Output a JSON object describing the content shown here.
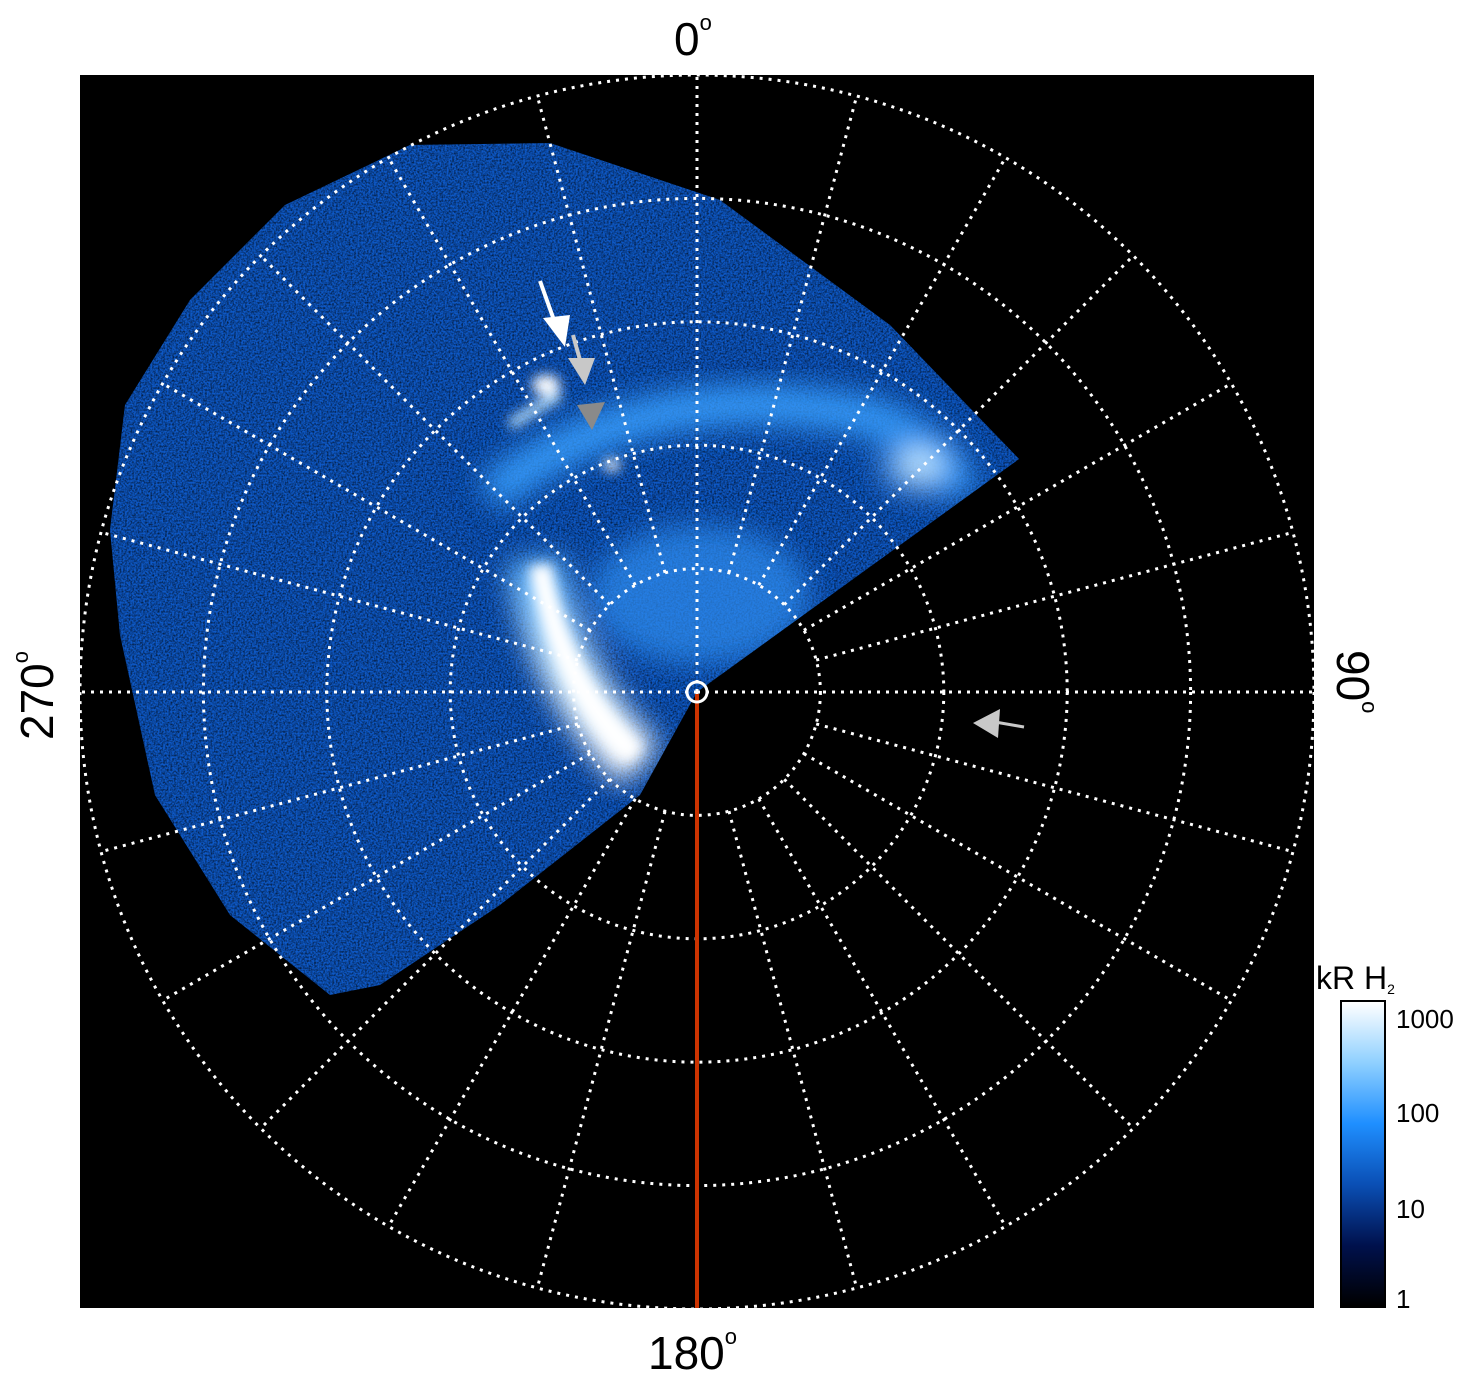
{
  "figure": {
    "angle_labels": {
      "top": "0",
      "right": "90",
      "bottom": "180",
      "left": "270",
      "degree_symbol": "o"
    },
    "colorbar": {
      "title_main": "kR H",
      "title_sub": "2",
      "ticks": [
        "1000",
        "100",
        "10",
        "1"
      ],
      "colors": [
        "#000000",
        "#00114d",
        "#0a4fb5",
        "#1f8fff",
        "#8fd0ff",
        "#ffffff"
      ]
    },
    "overlay": {
      "meridian_line_color": "#cc3300",
      "grid_color": "#ffffff",
      "arrow_colors": [
        "#ffffff",
        "#c8c8c8",
        "#8a8a8a",
        "#c8c8c8"
      ]
    }
  }
}
